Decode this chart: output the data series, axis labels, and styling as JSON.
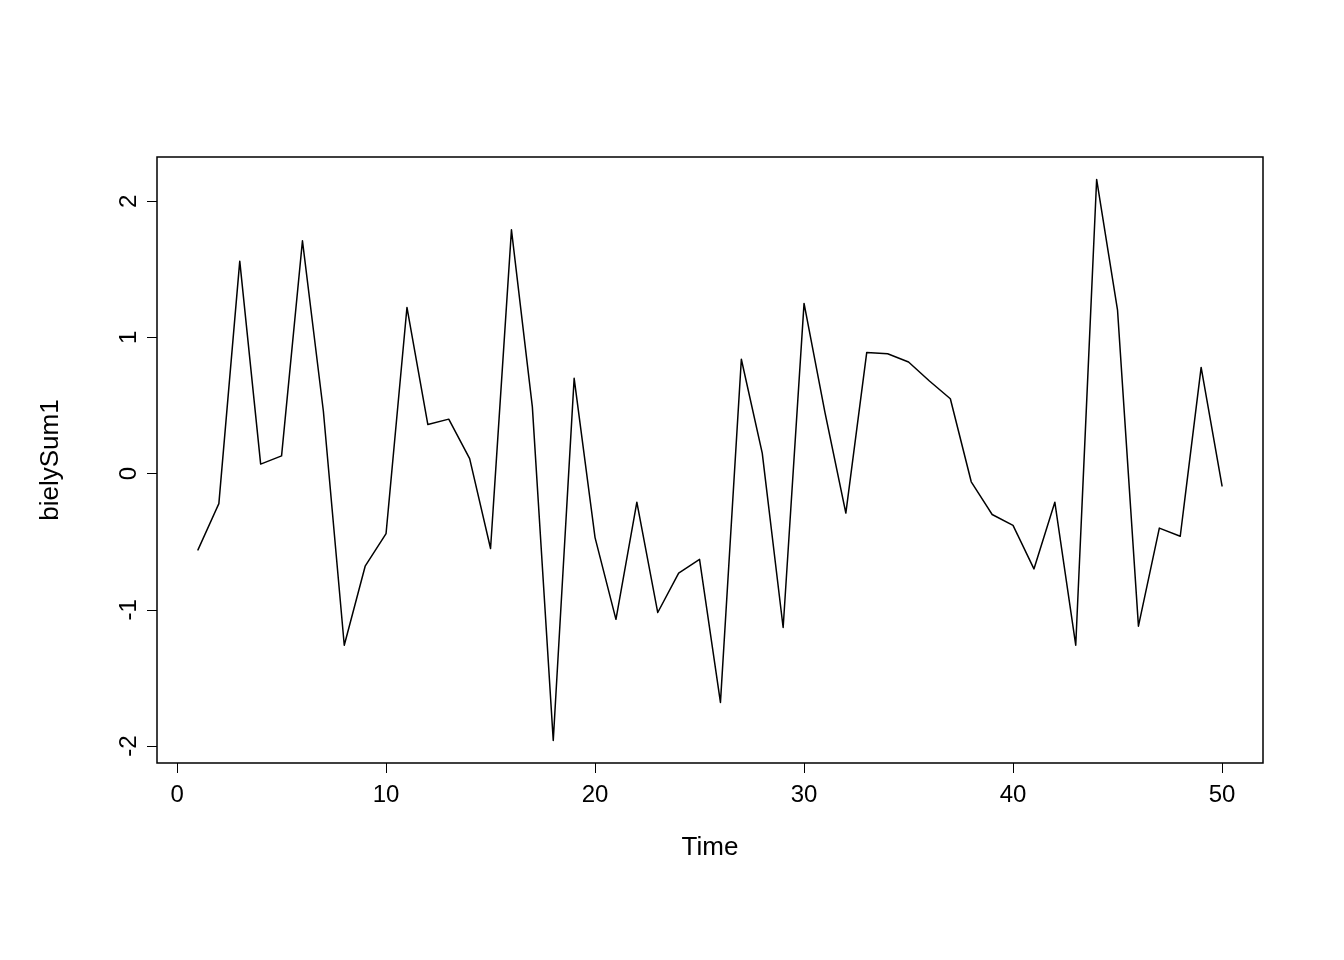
{
  "chart_data": {
    "type": "line",
    "xlabel": "Time",
    "ylabel": "bielySum1",
    "x": [
      1,
      2,
      3,
      4,
      5,
      6,
      7,
      8,
      9,
      10,
      11,
      12,
      13,
      14,
      15,
      16,
      17,
      18,
      19,
      20,
      21,
      22,
      23,
      24,
      25,
      26,
      27,
      28,
      29,
      30,
      31,
      32,
      33,
      34,
      35,
      36,
      37,
      38,
      39,
      40,
      41,
      42,
      43,
      44,
      45,
      46,
      47,
      48,
      49,
      50
    ],
    "series": [
      {
        "color": "#000000",
        "values": [
          -0.56,
          -0.22,
          1.56,
          0.07,
          0.13,
          1.71,
          0.46,
          -1.26,
          -0.68,
          -0.44,
          1.22,
          0.36,
          0.4,
          0.11,
          -0.55,
          1.79,
          0.49,
          -1.96,
          0.7,
          -0.47,
          -1.07,
          -0.21,
          -1.02,
          -0.73,
          -0.63,
          -1.68,
          0.84,
          0.15,
          -1.13,
          1.25,
          0.45,
          -0.29,
          0.89,
          0.88,
          0.82,
          0.68,
          0.55,
          -0.06,
          -0.3,
          -0.38,
          -0.7,
          -0.21,
          -1.26,
          2.16,
          1.2,
          -1.12,
          -0.4,
          -0.46,
          0.78,
          -0.09
        ]
      }
    ],
    "xlim": [
      -0.96,
      51.96
    ],
    "xticks": [
      0,
      10,
      20,
      30,
      40,
      50
    ],
    "ylim": [
      -2.125,
      2.325
    ],
    "yticks": [
      -2,
      -1,
      0,
      1,
      2
    ],
    "grid": false,
    "marker": "none",
    "line_style": "solid"
  }
}
